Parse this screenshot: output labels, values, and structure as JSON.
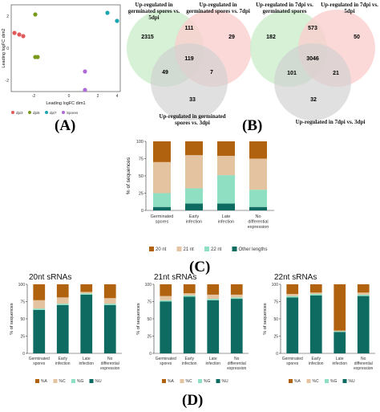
{
  "panel_labels": {
    "a": "(A)",
    "b": "(B)",
    "c": "(C)",
    "d": "(D)"
  },
  "colors": {
    "nt20": "#b0620f",
    "nt21": "#e4c3a0",
    "nt22": "#8fe0c2",
    "other": "#0d6b62",
    "pctA": "#b0620f",
    "pctC": "#e4c3a0",
    "pctG": "#8fe0c2",
    "pctU": "#0d6b62",
    "venn_green": "#cfeecf",
    "venn_red": "#fbcccc",
    "venn_grey": "#d4d4d4",
    "mds_dpi3": "#e05a5a",
    "mds_dpi5": "#7a9a1e",
    "mds_dpi7": "#1aa6b0",
    "mds_spores": "#b06ad6"
  },
  "panel_a": {
    "xlabel": "Leading logFC dim1",
    "ylabel": "Leading logFC dim2",
    "x_ticks": [
      "-2",
      "0",
      "2",
      "4"
    ],
    "y_ticks": [
      "2",
      "0",
      "-2"
    ],
    "legend": [
      "dpi3",
      "dpi5",
      "dpi7",
      "Spores"
    ]
  },
  "panel_b": {
    "left": {
      "label_top_left": "Up-regulated in germinated spores vs. 5dpi",
      "label_top_right": "Up-regulated in germinated spores vs. 7dpi",
      "label_bottom": "Up-regulated in germinated spores vs. 3dpi",
      "values": {
        "only_left": "2315",
        "left_right": "111",
        "only_right": "29",
        "all": "119",
        "left_bottom": "49",
        "right_bottom": "7",
        "only_bottom": "33"
      }
    },
    "right": {
      "label_top_left": "Up-regulated in 7dpi vs. germinated spores",
      "label_top_right": "Up-regulated in 7dpi vs. 5dpi",
      "label_bottom": "Up-regulated in 7dpi vs. 3dpi",
      "values": {
        "only_left": "182",
        "left_right": "573",
        "only_right": "50",
        "all": "3046",
        "left_bottom": "101",
        "right_bottom": "21",
        "only_bottom": "32"
      }
    }
  },
  "chart_data": [
    {
      "type": "bar",
      "title": "",
      "stacked": true,
      "ylabel": "% of sequences",
      "ylim": [
        0,
        100
      ],
      "y_ticks": [
        "0",
        "25",
        "50",
        "75",
        "100"
      ],
      "categories": [
        "Germinated spores",
        "Early infection",
        "Late infection",
        "No differential expression"
      ],
      "series": [
        {
          "name": "Other lengths",
          "values": [
            5,
            10,
            10,
            5
          ]
        },
        {
          "name": "22 nt",
          "values": [
            20,
            22,
            41,
            25
          ]
        },
        {
          "name": "21 nt",
          "values": [
            45,
            48,
            28,
            45
          ]
        },
        {
          "name": "20 nt",
          "values": [
            30,
            20,
            21,
            25
          ]
        }
      ],
      "legend": [
        "20 nt",
        "21 nt",
        "22 nt",
        "Other lengths"
      ]
    },
    {
      "type": "bar",
      "title": "20nt sRNAs",
      "stacked": true,
      "ylabel": "% of sequences",
      "ylim": [
        0,
        100
      ],
      "y_ticks": [
        "0",
        "25",
        "50",
        "75",
        "100"
      ],
      "categories": [
        "Germinated spores",
        "Early infection",
        "Late infection",
        "No differential expression"
      ],
      "series": [
        {
          "name": "%U",
          "values": [
            63,
            70,
            85,
            70
          ]
        },
        {
          "name": "%G",
          "values": [
            2,
            2,
            2,
            2
          ]
        },
        {
          "name": "%C",
          "values": [
            12,
            9,
            2,
            8
          ]
        },
        {
          "name": "%A",
          "values": [
            23,
            19,
            11,
            20
          ]
        }
      ],
      "legend": [
        "%A",
        "%C",
        "%G",
        "%U"
      ]
    },
    {
      "type": "bar",
      "title": "21nt sRNAs",
      "stacked": true,
      "ylabel": "% of sequences",
      "ylim": [
        0,
        100
      ],
      "y_ticks": [
        "0",
        "25",
        "50",
        "75",
        "100"
      ],
      "categories": [
        "Germinated spores",
        "Early infection",
        "Late infection",
        "No differential expression"
      ],
      "series": [
        {
          "name": "%U",
          "values": [
            75,
            82,
            77,
            79
          ]
        },
        {
          "name": "%G",
          "values": [
            2,
            2,
            2,
            2
          ]
        },
        {
          "name": "%C",
          "values": [
            6,
            3,
            6,
            4
          ]
        },
        {
          "name": "%A",
          "values": [
            17,
            13,
            15,
            15
          ]
        }
      ],
      "legend": [
        "%A",
        "%C",
        "%G",
        "%U"
      ]
    },
    {
      "type": "bar",
      "title": "22nt sRNAs",
      "stacked": true,
      "ylabel": "% of sequences",
      "ylim": [
        0,
        100
      ],
      "y_ticks": [
        "0",
        "25",
        "50",
        "75",
        "100"
      ],
      "categories": [
        "Germinated spores",
        "Early infection",
        "Late infection",
        "No differential expression"
      ],
      "series": [
        {
          "name": "%U",
          "values": [
            81,
            84,
            31,
            83
          ]
        },
        {
          "name": "%G",
          "values": [
            2,
            2,
            1,
            2
          ]
        },
        {
          "name": "%C",
          "values": [
            3,
            2,
            1,
            3
          ]
        },
        {
          "name": "%A",
          "values": [
            14,
            12,
            67,
            12
          ]
        }
      ],
      "legend": [
        "%A",
        "%C",
        "%G",
        "%U"
      ]
    }
  ]
}
